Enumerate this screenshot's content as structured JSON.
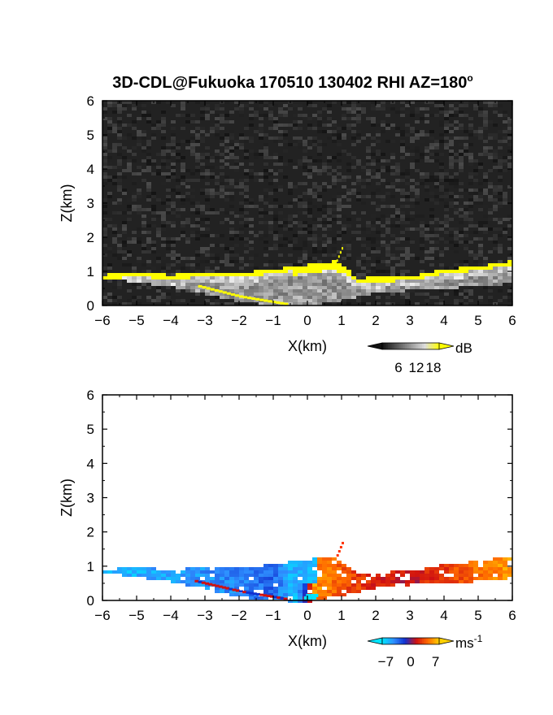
{
  "title": {
    "text": "3D-CDL@Fukuoka 170510 130402 RHI AZ=180",
    "degree_mark": "o"
  },
  "chart_data": [
    {
      "type": "heatmap",
      "panel": "reflectivity",
      "xlabel": "X(km)",
      "ylabel": "Z(km)",
      "xlim": [
        -6,
        6
      ],
      "ylim": [
        0,
        6
      ],
      "xticks": [
        "-6",
        "-5",
        "-4",
        "-3",
        "-2",
        "-1",
        "0",
        "1",
        "2",
        "3",
        "4",
        "5",
        "6"
      ],
      "yticks": [
        "0",
        "1",
        "2",
        "3",
        "4",
        "5",
        "6"
      ],
      "colorbar": {
        "unit": "dB",
        "ticks": [
          6,
          12,
          18
        ],
        "tick_labels": [
          "6",
          "12",
          "18"
        ],
        "colors": [
          "#111111",
          "#555555",
          "#999999",
          "#dddddd",
          "#ffff00"
        ]
      },
      "background": "noise",
      "layer_top_km": [
        [
          -6,
          0.9
        ],
        [
          -5,
          0.95
        ],
        [
          -4,
          0.9
        ],
        [
          -3,
          0.95
        ],
        [
          -2,
          0.95
        ],
        [
          -1,
          1.05
        ],
        [
          0,
          1.2
        ],
        [
          0.8,
          1.3
        ],
        [
          1.5,
          0.8
        ],
        [
          3,
          0.85
        ],
        [
          4,
          1.05
        ],
        [
          5,
          1.15
        ],
        [
          6,
          1.3
        ]
      ],
      "layer_base_km": [
        [
          -6,
          0.85
        ],
        [
          -4,
          0.6
        ],
        [
          -3,
          0.4
        ],
        [
          -2,
          0.15
        ],
        [
          -1,
          0.05
        ],
        [
          0,
          0.0
        ],
        [
          1,
          0.2
        ],
        [
          2,
          0.4
        ],
        [
          3,
          0.5
        ],
        [
          4,
          0.55
        ],
        [
          5,
          0.6
        ],
        [
          6,
          0.7
        ]
      ],
      "strong_echo_dB": 18
    },
    {
      "type": "heatmap",
      "panel": "doppler_velocity",
      "xlabel": "X(km)",
      "ylabel": "Z(km)",
      "xlim": [
        -6,
        6
      ],
      "ylim": [
        0,
        6
      ],
      "xticks": [
        "-6",
        "-5",
        "-4",
        "-3",
        "-2",
        "-1",
        "0",
        "1",
        "2",
        "3",
        "4",
        "5",
        "6"
      ],
      "yticks": [
        "0",
        "1",
        "2",
        "3",
        "4",
        "5",
        "6"
      ],
      "colorbar": {
        "unit": "ms",
        "unit_exponent": "-1",
        "ticks": [
          -7,
          0,
          7
        ],
        "tick_labels": [
          "-7",
          "0",
          "7"
        ],
        "colors": [
          "#00e5ff",
          "#2f8fff",
          "#1030d0",
          "#d01010",
          "#ff6a00",
          "#ffd000"
        ]
      },
      "velocity_profile_ms": [
        [
          -6,
          -6.5
        ],
        [
          -5,
          -6
        ],
        [
          -4,
          -5.5
        ],
        [
          -3,
          -5
        ],
        [
          -2,
          -4.5
        ],
        [
          -1,
          -3.5
        ],
        [
          -0.3,
          -7
        ],
        [
          0.2,
          6
        ],
        [
          1,
          4
        ],
        [
          2,
          2.5
        ],
        [
          3,
          1.5
        ],
        [
          4,
          3
        ],
        [
          5,
          5
        ],
        [
          6,
          6.5
        ]
      ]
    }
  ]
}
